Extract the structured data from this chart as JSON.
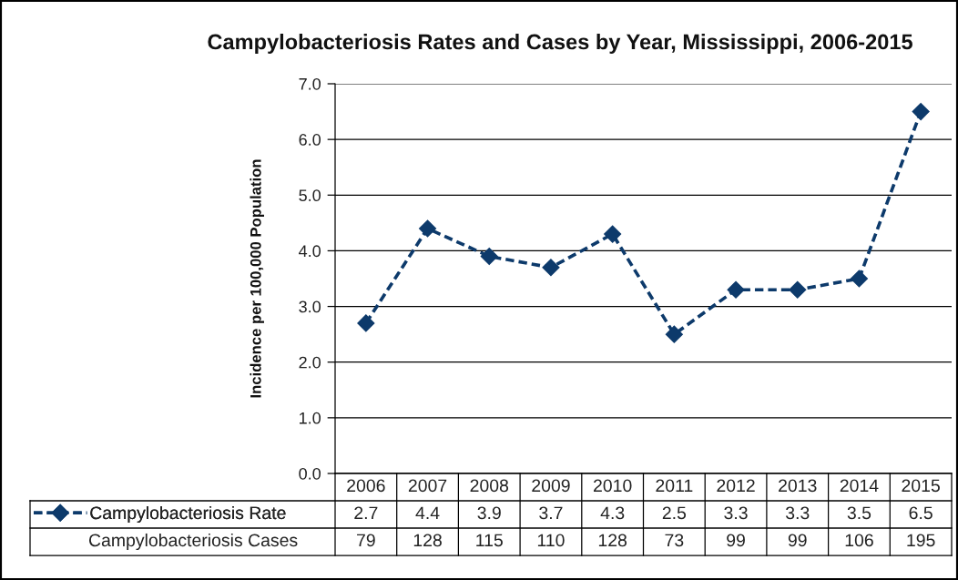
{
  "chart_data": {
    "type": "line",
    "title": "Campylobacteriosis Rates and Cases by Year, Mississippi, 2006-2015",
    "ylabel": "Incidence per 100,000 Population",
    "categories": [
      "2006",
      "2007",
      "2008",
      "2009",
      "2010",
      "2011",
      "2012",
      "2013",
      "2014",
      "2015"
    ],
    "series": [
      {
        "name": "Campylobacteriosis Rate",
        "color": "#0d3a6b",
        "values": [
          2.7,
          4.4,
          3.9,
          3.7,
          4.3,
          2.5,
          3.3,
          3.3,
          3.5,
          6.5
        ]
      }
    ],
    "ylim": [
      0,
      7
    ],
    "yticks": [
      {
        "value": 0,
        "label": "0.0"
      },
      {
        "value": 1,
        "label": "1.0"
      },
      {
        "value": 2,
        "label": "2.0"
      },
      {
        "value": 3,
        "label": "3.0"
      },
      {
        "value": 4,
        "label": "4.0"
      },
      {
        "value": 5,
        "label": "5.0"
      },
      {
        "value": 6,
        "label": "6.0"
      },
      {
        "value": 7,
        "label": "7.0"
      }
    ],
    "grid": "y",
    "legend": "bottom",
    "marker": "diamond",
    "line_style": "dashed",
    "data_labels": true,
    "annotations": [
      "Campylobacteriosis Cases",
      "79",
      "128",
      "115",
      "110",
      "128",
      "73",
      "99",
      "99",
      "106",
      "195"
    ]
  }
}
